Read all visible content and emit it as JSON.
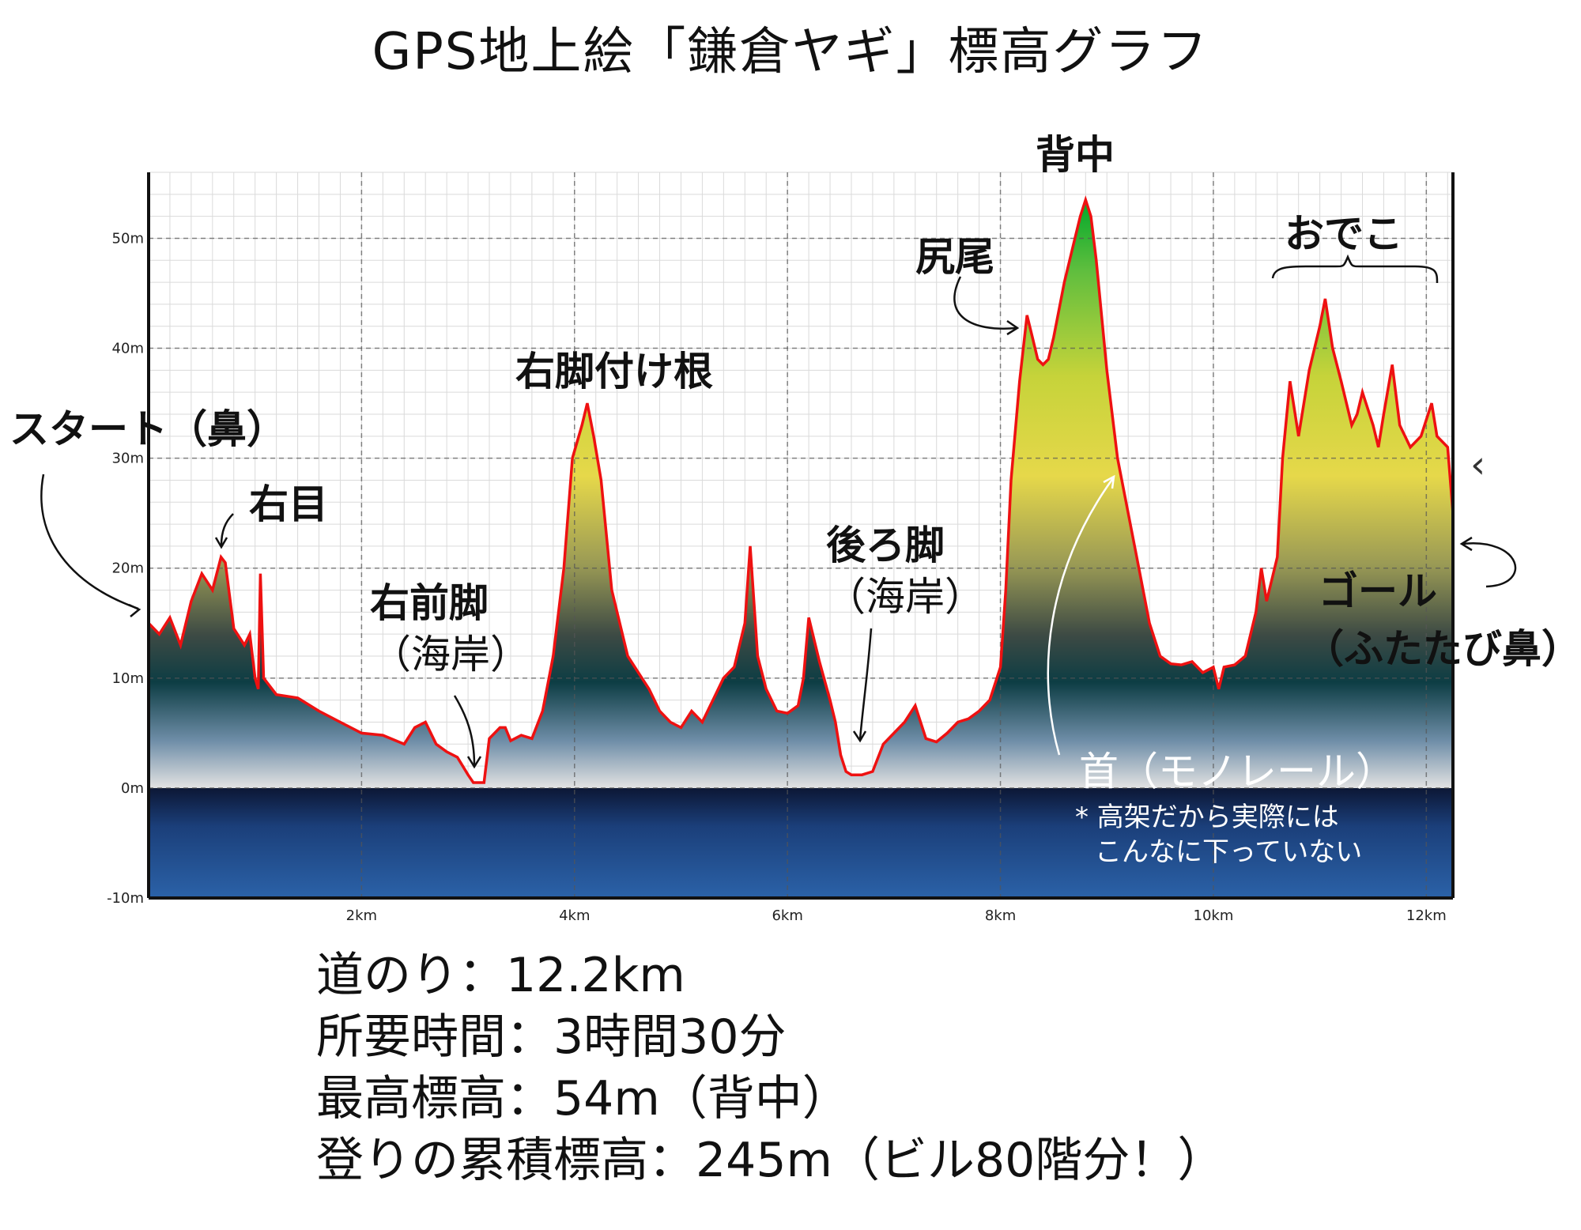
{
  "title": "GPS地上絵「鎌倉ヤギ」標高グラフ",
  "chart_data": {
    "type": "area",
    "title": "GPS地上絵「鎌倉ヤギ」標高グラフ",
    "xlabel": "",
    "ylabel": "",
    "x_unit": "km",
    "y_unit": "m",
    "xlim": [
      0,
      12.25
    ],
    "ylim": [
      -10,
      56
    ],
    "x_ticks": [
      "2km",
      "4km",
      "6km",
      "8km",
      "10km",
      "12km"
    ],
    "y_ticks": [
      "50m",
      "40m",
      "30m",
      "20m",
      "10m",
      "0m",
      "-10m"
    ],
    "grid": true,
    "line_color": "#ee1111",
    "points": [
      [
        0.0,
        15
      ],
      [
        0.1,
        14
      ],
      [
        0.2,
        15.5
      ],
      [
        0.3,
        13
      ],
      [
        0.4,
        17
      ],
      [
        0.5,
        19.5
      ],
      [
        0.6,
        18
      ],
      [
        0.68,
        21
      ],
      [
        0.72,
        20.5
      ],
      [
        0.8,
        14.5
      ],
      [
        0.9,
        13
      ],
      [
        0.95,
        14
      ],
      [
        1.0,
        10
      ],
      [
        1.03,
        9
      ],
      [
        1.05,
        19.5
      ],
      [
        1.08,
        10
      ],
      [
        1.2,
        8.5
      ],
      [
        1.4,
        8.2
      ],
      [
        1.6,
        7
      ],
      [
        1.8,
        6
      ],
      [
        2.0,
        5
      ],
      [
        2.2,
        4.8
      ],
      [
        2.4,
        4
      ],
      [
        2.5,
        5.5
      ],
      [
        2.6,
        6
      ],
      [
        2.7,
        4
      ],
      [
        2.8,
        3.3
      ],
      [
        2.9,
        2.8
      ],
      [
        3.0,
        1.2
      ],
      [
        3.05,
        0.5
      ],
      [
        3.15,
        0.5
      ],
      [
        3.2,
        4.5
      ],
      [
        3.3,
        5.5
      ],
      [
        3.35,
        5.5
      ],
      [
        3.4,
        4.3
      ],
      [
        3.5,
        4.8
      ],
      [
        3.6,
        4.5
      ],
      [
        3.7,
        7
      ],
      [
        3.8,
        12
      ],
      [
        3.9,
        20
      ],
      [
        3.98,
        30
      ],
      [
        4.07,
        33
      ],
      [
        4.12,
        35
      ],
      [
        4.18,
        32
      ],
      [
        4.25,
        28
      ],
      [
        4.35,
        18
      ],
      [
        4.5,
        12
      ],
      [
        4.6,
        10.5
      ],
      [
        4.7,
        9
      ],
      [
        4.8,
        7
      ],
      [
        4.9,
        6
      ],
      [
        5.0,
        5.5
      ],
      [
        5.1,
        7
      ],
      [
        5.2,
        6
      ],
      [
        5.3,
        8
      ],
      [
        5.4,
        10
      ],
      [
        5.5,
        11
      ],
      [
        5.6,
        15
      ],
      [
        5.65,
        22
      ],
      [
        5.72,
        12
      ],
      [
        5.8,
        9
      ],
      [
        5.9,
        7
      ],
      [
        6.0,
        6.8
      ],
      [
        6.1,
        7.5
      ],
      [
        6.15,
        10
      ],
      [
        6.2,
        15.5
      ],
      [
        6.3,
        11.5
      ],
      [
        6.4,
        8
      ],
      [
        6.45,
        6
      ],
      [
        6.5,
        3
      ],
      [
        6.55,
        1.5
      ],
      [
        6.6,
        1.2
      ],
      [
        6.7,
        1.2
      ],
      [
        6.8,
        1.5
      ],
      [
        6.9,
        4
      ],
      [
        7.0,
        5
      ],
      [
        7.1,
        6
      ],
      [
        7.2,
        7.5
      ],
      [
        7.3,
        4.5
      ],
      [
        7.4,
        4.2
      ],
      [
        7.5,
        5
      ],
      [
        7.6,
        6
      ],
      [
        7.7,
        6.3
      ],
      [
        7.8,
        7
      ],
      [
        7.9,
        8
      ],
      [
        8.0,
        11
      ],
      [
        8.05,
        18
      ],
      [
        8.1,
        28
      ],
      [
        8.18,
        37
      ],
      [
        8.25,
        43
      ],
      [
        8.3,
        41
      ],
      [
        8.35,
        39
      ],
      [
        8.4,
        38.5
      ],
      [
        8.45,
        39
      ],
      [
        8.5,
        41
      ],
      [
        8.6,
        46
      ],
      [
        8.7,
        50
      ],
      [
        8.75,
        52
      ],
      [
        8.8,
        53.5
      ],
      [
        8.85,
        52
      ],
      [
        8.9,
        48
      ],
      [
        9.0,
        38
      ],
      [
        9.1,
        30
      ],
      [
        9.2,
        25
      ],
      [
        9.3,
        20
      ],
      [
        9.4,
        15
      ],
      [
        9.5,
        12
      ],
      [
        9.6,
        11.3
      ],
      [
        9.7,
        11.2
      ],
      [
        9.8,
        11.5
      ],
      [
        9.9,
        10.5
      ],
      [
        10.0,
        11
      ],
      [
        10.05,
        9
      ],
      [
        10.1,
        11
      ],
      [
        10.2,
        11.2
      ],
      [
        10.3,
        12
      ],
      [
        10.4,
        16
      ],
      [
        10.45,
        20
      ],
      [
        10.5,
        17
      ],
      [
        10.6,
        21
      ],
      [
        10.65,
        30
      ],
      [
        10.72,
        37
      ],
      [
        10.8,
        32
      ],
      [
        10.9,
        38
      ],
      [
        11.0,
        42
      ],
      [
        11.05,
        44.5
      ],
      [
        11.12,
        40
      ],
      [
        11.2,
        37
      ],
      [
        11.3,
        33
      ],
      [
        11.35,
        34
      ],
      [
        11.4,
        36
      ],
      [
        11.5,
        33
      ],
      [
        11.55,
        31
      ],
      [
        11.6,
        34
      ],
      [
        11.68,
        38.5
      ],
      [
        11.75,
        33
      ],
      [
        11.85,
        31
      ],
      [
        11.95,
        32
      ],
      [
        12.05,
        35
      ],
      [
        12.1,
        32
      ],
      [
        12.2,
        31
      ],
      [
        12.25,
        25
      ]
    ]
  },
  "annotations": {
    "start": "スタート（鼻）",
    "right_eye": "右目",
    "right_foreleg": "右前脚",
    "coast1": "（海岸）",
    "right_leg_base": "右脚付け根",
    "hind_leg": "後ろ脚",
    "coast2": "（海岸）",
    "tail": "尻尾",
    "back": "背中",
    "forehead": "おでこ",
    "goal": "ゴール",
    "goal_sub": "（ふたたび鼻）",
    "neck": "首（モノレール）",
    "neck_note_1": "* 高架だから実際には",
    "neck_note_2": "こんなに下っていない"
  },
  "stats": {
    "distance": "道のり：12.2km",
    "duration": "所要時間：3時間30分",
    "max_elevation": "最高標高：54m（背中）",
    "total_ascent": "登りの累積標高：245m（ビル80階分！）"
  },
  "ui": {
    "collapse_chevron": "‹"
  }
}
